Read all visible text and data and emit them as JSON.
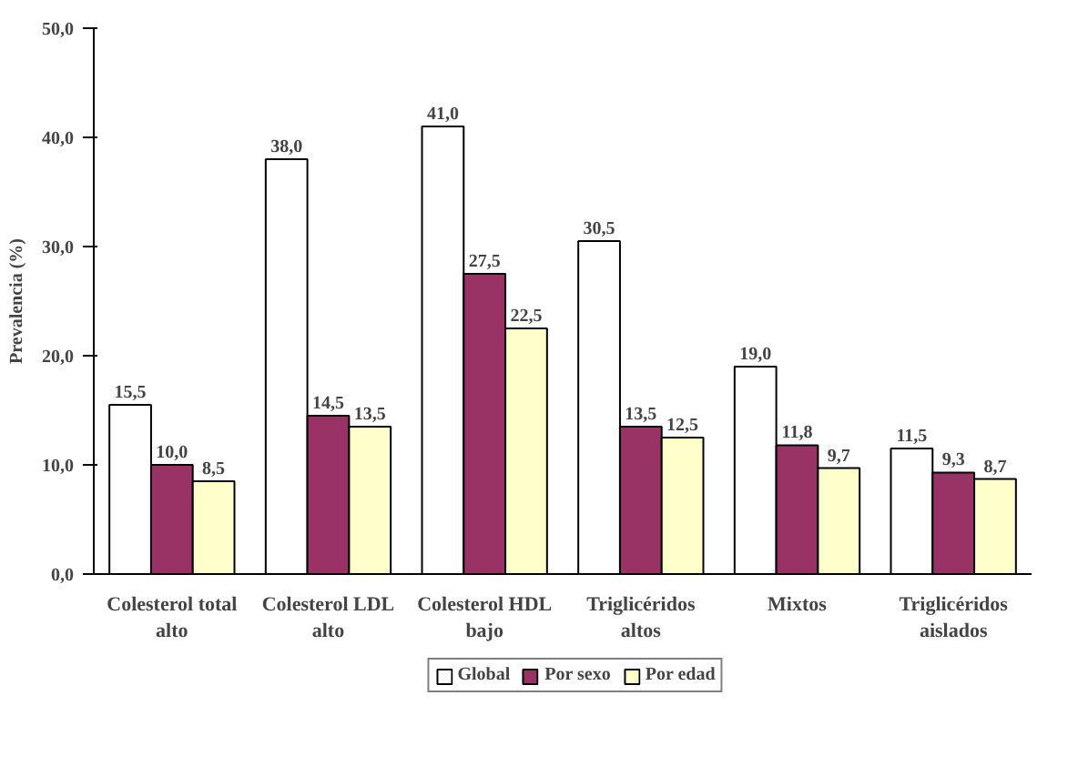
{
  "chart_data": {
    "type": "bar",
    "ylabel": "Prevalencia (%)",
    "categories": [
      "Colesterol total\nalto",
      "Colesterol LDL\nalto",
      "Colesterol HDL\nbajo",
      "Triglicéridos\naltos",
      "Mixtos",
      "Triglicéridos\naislados"
    ],
    "series": [
      {
        "name": "Global",
        "color": "#ffffff",
        "values": [
          15.5,
          38.0,
          41.0,
          30.5,
          19.0,
          11.5
        ],
        "value_labels": [
          "15,5",
          "38,0",
          "41,0",
          "30,5",
          "19,0",
          "11,5"
        ]
      },
      {
        "name": "Por sexo",
        "color": "#993366",
        "values": [
          10.0,
          14.5,
          27.5,
          13.5,
          11.8,
          9.3
        ],
        "value_labels": [
          "10,0",
          "14,5",
          "27,5",
          "13,5",
          "11,8",
          "9,3"
        ]
      },
      {
        "name": "Por edad",
        "color": "#ffffcc",
        "values": [
          8.5,
          13.5,
          22.5,
          12.5,
          9.7,
          8.7
        ],
        "value_labels": [
          "8,5",
          "13,5",
          "22,5",
          "12,5",
          "9,7",
          "8,7"
        ]
      }
    ],
    "ylim": [
      0,
      50
    ],
    "yticks": [
      {
        "value": 0,
        "label": "0,0"
      },
      {
        "value": 10,
        "label": "10,0"
      },
      {
        "value": 20,
        "label": "20,0"
      },
      {
        "value": 30,
        "label": "30,0"
      },
      {
        "value": 40,
        "label": "40,0"
      },
      {
        "value": 50,
        "label": "50,0"
      }
    ],
    "grid": false,
    "legend": "bottom"
  }
}
